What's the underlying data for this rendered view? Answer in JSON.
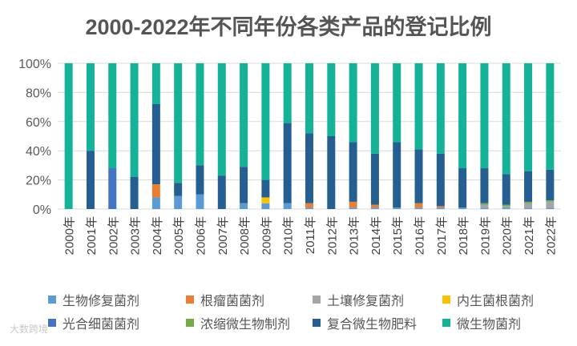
{
  "chart_data": {
    "type": "bar",
    "stacked": true,
    "title": "2000-2022年不同年份各类产品的登记比例",
    "categories": [
      "2000年",
      "2001年",
      "2002年",
      "2003年",
      "2004年",
      "2005年",
      "2006年",
      "2007年",
      "2008年",
      "2009年",
      "2010年",
      "2011年",
      "2012年",
      "2013年",
      "2014年",
      "2015年",
      "2016年",
      "2017年",
      "2018年",
      "2019年",
      "2020年",
      "2021年",
      "2022年"
    ],
    "yticks": [
      "0%",
      "20%",
      "40%",
      "60%",
      "80%",
      "100%"
    ],
    "ylim": [
      0,
      100
    ],
    "xlabel": "",
    "ylabel": "",
    "series": [
      {
        "name": "生物修复菌剂",
        "color": "#5B9BD5",
        "values": [
          0,
          0,
          0,
          0,
          8,
          9,
          10,
          0,
          4,
          4,
          4,
          1,
          0,
          1,
          1,
          1,
          1,
          1,
          1,
          1,
          1,
          1,
          1
        ]
      },
      {
        "name": "根瘤菌菌剂",
        "color": "#ED7D31",
        "values": [
          0,
          0,
          0,
          0,
          9,
          0,
          0,
          0,
          0,
          0,
          0,
          3,
          0,
          4,
          2,
          0,
          3,
          1,
          0,
          0,
          0,
          0,
          0
        ]
      },
      {
        "name": "土壤修复菌剂",
        "color": "#A5A5A5",
        "values": [
          0,
          0,
          0,
          0,
          0,
          0,
          0,
          0,
          0,
          0,
          0,
          0,
          0,
          0,
          0,
          0,
          0,
          0,
          0,
          2,
          1,
          3,
          4
        ]
      },
      {
        "name": "内生菌根菌剂",
        "color": "#FFC000",
        "values": [
          0,
          0,
          0,
          0,
          0,
          0,
          0,
          0,
          0,
          4,
          0,
          0,
          0,
          0,
          0,
          0,
          0,
          0,
          0,
          0,
          0,
          0,
          0
        ]
      },
      {
        "name": "光合细菌菌剂",
        "color": "#4472C4",
        "values": [
          0,
          0,
          28,
          0,
          0,
          0,
          0,
          0,
          0,
          0,
          0,
          0,
          0,
          0,
          0,
          0,
          0,
          0,
          0,
          0,
          0,
          0,
          0
        ]
      },
      {
        "name": "浓缩微生物制剂",
        "color": "#70AD47",
        "values": [
          0,
          0,
          0,
          0,
          0,
          0,
          0,
          0,
          0,
          0,
          0,
          0,
          0,
          0,
          0,
          0,
          0,
          0,
          0,
          1,
          1,
          1,
          1
        ]
      },
      {
        "name": "复合微生物肥料",
        "color": "#255E91",
        "values": [
          0,
          40,
          0,
          22,
          55,
          9,
          20,
          23,
          25,
          12,
          55,
          48,
          50,
          41,
          35,
          45,
          37,
          36,
          27,
          24,
          21,
          21,
          21
        ]
      },
      {
        "name": "微生物菌剂",
        "color": "#14B398",
        "values": [
          100,
          60,
          72,
          78,
          28,
          82,
          70,
          77,
          71,
          80,
          41,
          48,
          50,
          54,
          62,
          54,
          59,
          62,
          72,
          72,
          76,
          74,
          73
        ]
      }
    ]
  },
  "watermark": "大数跨境"
}
